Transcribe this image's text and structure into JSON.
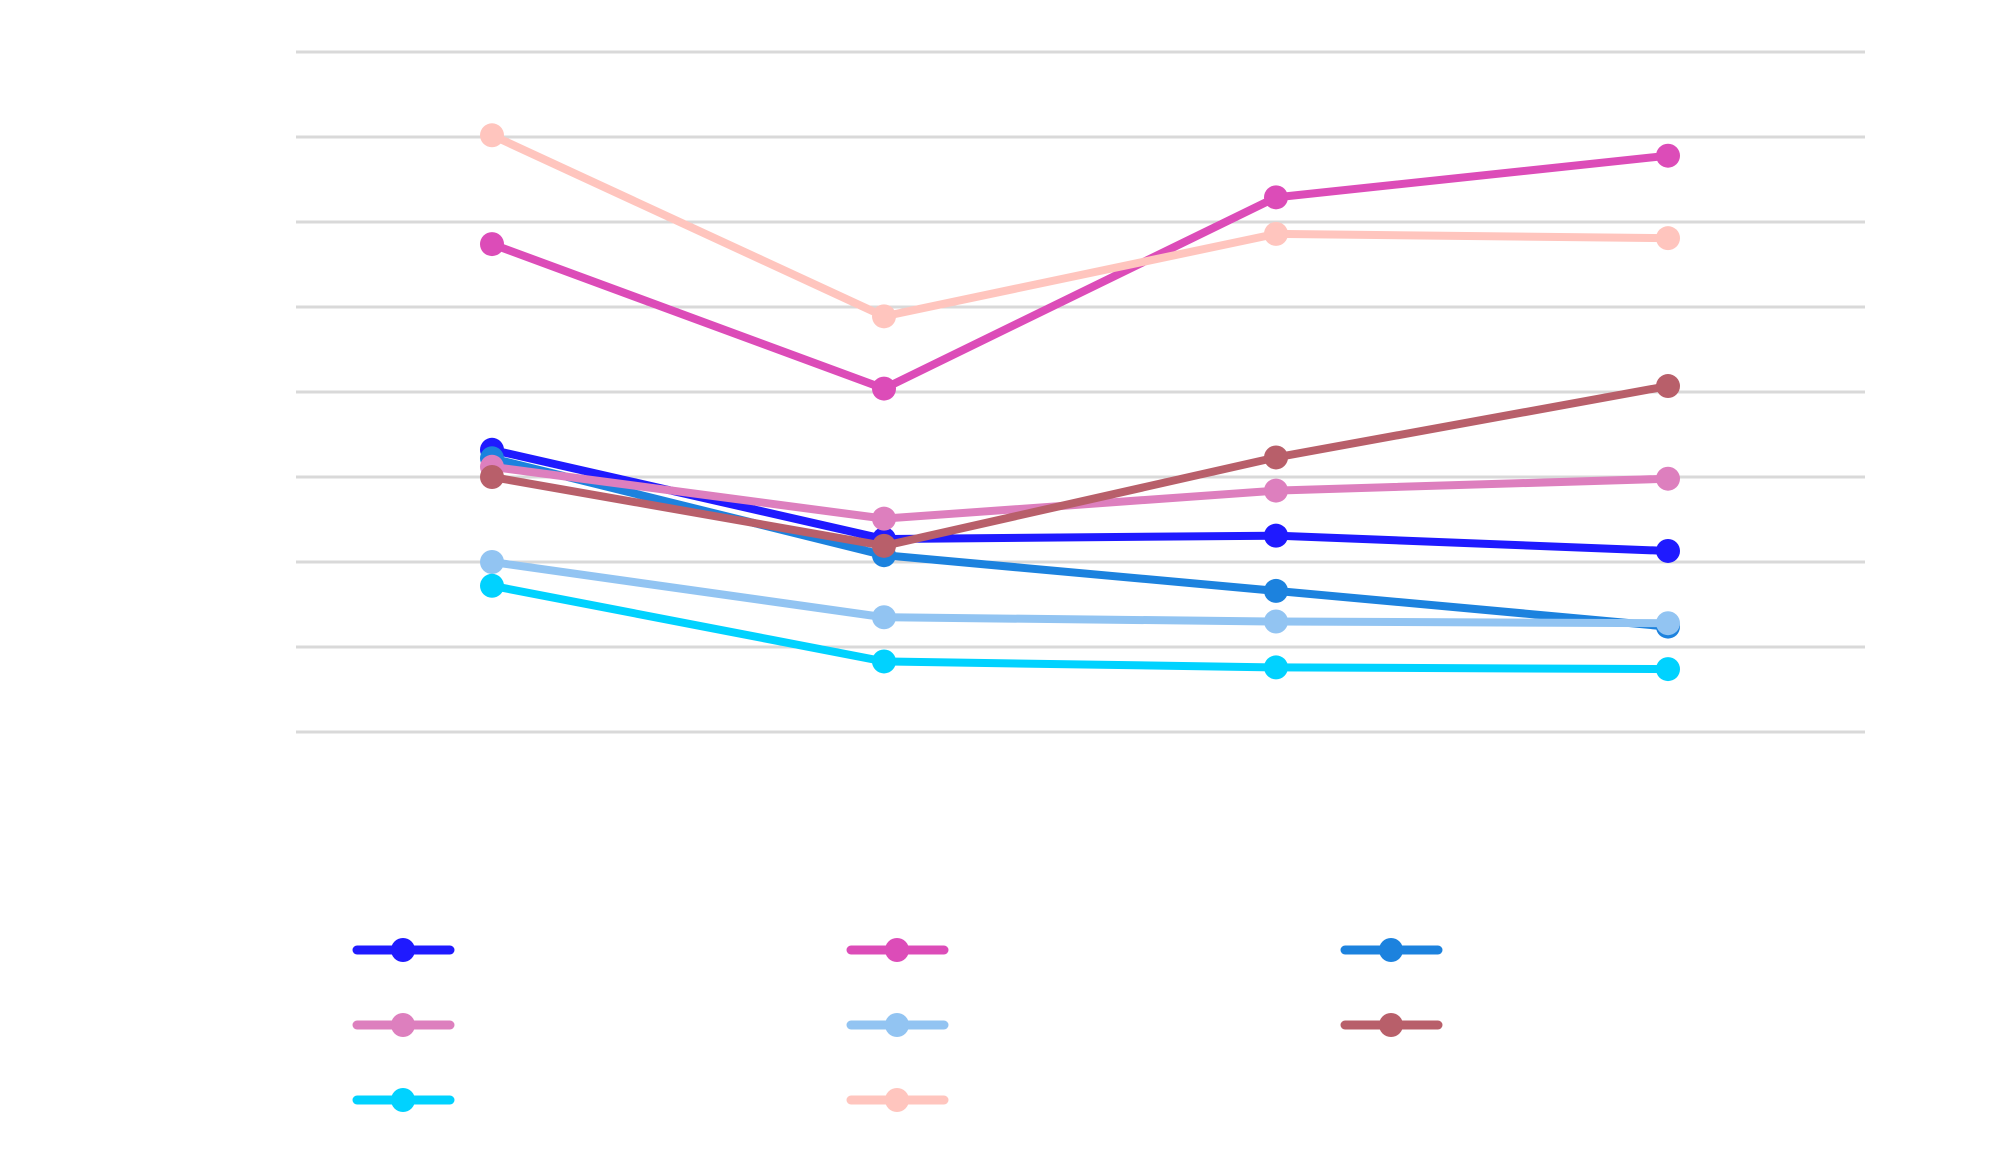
{
  "chart_data": {
    "type": "line",
    "title": "",
    "xlabel": "",
    "ylabel": "",
    "categories": [
      "",
      "",
      "",
      ""
    ],
    "ylim": [
      0,
      8
    ],
    "gridlines": [
      0,
      1,
      2,
      3,
      4,
      5,
      6,
      7,
      8
    ],
    "grid": true,
    "legend_position": "bottom",
    "series": [
      {
        "color": "#1f1aff",
        "values": [
          3.32,
          2.27,
          2.31,
          2.13
        ]
      },
      {
        "color": "#dc4cb8",
        "values": [
          5.74,
          4.04,
          6.29,
          6.78
        ]
      },
      {
        "color": "#1c82de",
        "values": [
          3.22,
          2.08,
          1.66,
          1.24
        ]
      },
      {
        "color": "#dd7fbe",
        "values": [
          3.12,
          2.51,
          2.84,
          2.98
        ]
      },
      {
        "color": "#92c4f2",
        "values": [
          2.0,
          1.35,
          1.3,
          1.28
        ]
      },
      {
        "color": "#b85f6a",
        "values": [
          3.0,
          2.19,
          3.23,
          4.07
        ]
      },
      {
        "color": "#00d2ff",
        "values": [
          1.72,
          0.83,
          0.76,
          0.74
        ]
      },
      {
        "color": "#ffc5be",
        "values": [
          7.02,
          4.89,
          5.86,
          5.81
        ]
      }
    ]
  }
}
